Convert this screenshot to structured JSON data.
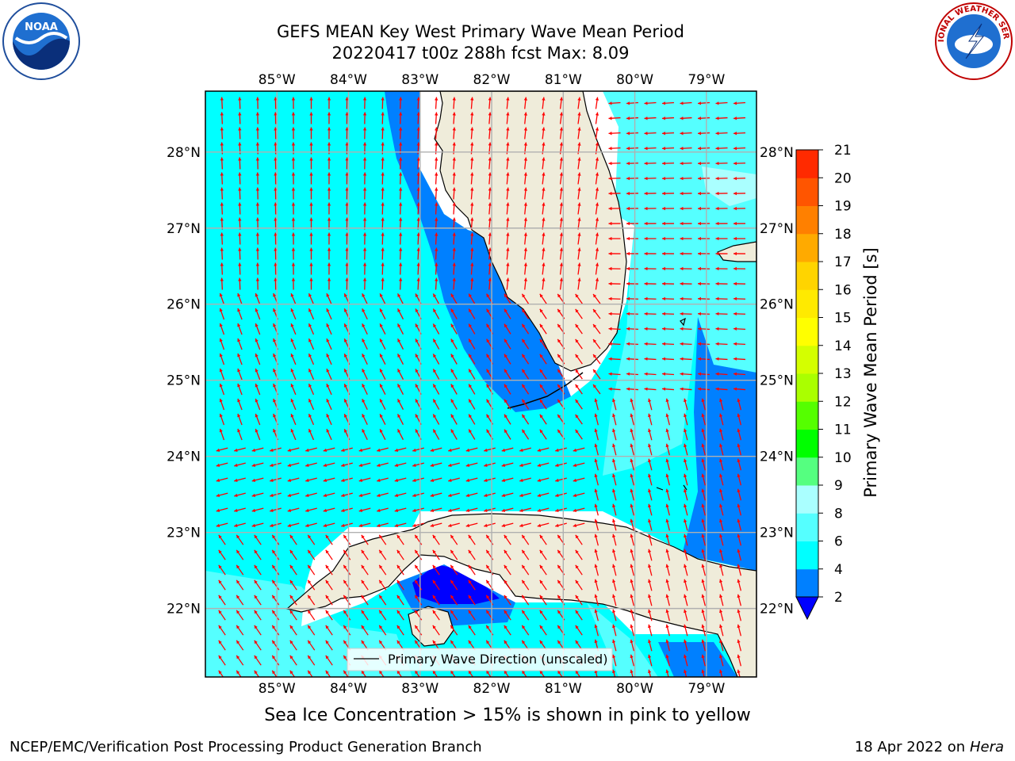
{
  "header": {
    "title_line1": "GEFS MEAN Key West Primary Wave Mean Period",
    "title_line2": "20220417 t00z 288h fcst   Max: 8.09"
  },
  "logos": {
    "left": "noaa-logo",
    "left_text": "NOAA",
    "right": "nws-logo",
    "right_text": "NATIONAL WEATHER SERVICE"
  },
  "map": {
    "lon_ticks": [
      "85°W",
      "84°W",
      "83°W",
      "82°W",
      "81°W",
      "80°W",
      "79°W"
    ],
    "lon_values": [
      -85,
      -84,
      -83,
      -82,
      -81,
      -80,
      -79
    ],
    "lat_ticks": [
      "28°N",
      "27°N",
      "26°N",
      "25°N",
      "24°N",
      "23°N",
      "22°N"
    ],
    "lat_values": [
      28,
      27,
      26,
      25,
      24,
      23,
      22
    ],
    "lon_range": [
      -86.0,
      -78.3
    ],
    "lat_range": [
      21.1,
      28.8
    ],
    "legend_label": "Primary Wave Direction (unscaled)",
    "colors": {
      "land": "#efecda",
      "ocean_4_6": "#00ffff",
      "ocean_6_8": "#55ffff",
      "ocean_8_9": "#aaffff",
      "ocean_2_4": "#0080ff",
      "ocean_lt2": "#0000ff",
      "arrow": "#ff0000",
      "grid": "#b0b0b0"
    }
  },
  "colorbar": {
    "label": "Primary Wave Mean Period [s]",
    "ticks": [
      "2",
      "4",
      "6",
      "8",
      "9",
      "10",
      "11",
      "12",
      "13",
      "14",
      "15",
      "16",
      "17",
      "18",
      "19",
      "20",
      "21"
    ],
    "colors": [
      "#0080ff",
      "#00ffff",
      "#55ffff",
      "#aaffff",
      "#55ff80",
      "#00ff00",
      "#55ff00",
      "#aaff00",
      "#d4ff00",
      "#ffff00",
      "#ffea00",
      "#ffd400",
      "#ffaa00",
      "#ff8000",
      "#ff5500",
      "#ff2a00"
    ],
    "under_color": "#0000ff",
    "over_color": "#ff0000"
  },
  "footer": {
    "note": "Sea Ice Concentration > 15% is shown in pink to yellow",
    "left": "NCEP/EMC/Verification Post Processing Product Generation Branch",
    "right_date": "18 Apr 2022 on ",
    "right_host": "Hera"
  }
}
